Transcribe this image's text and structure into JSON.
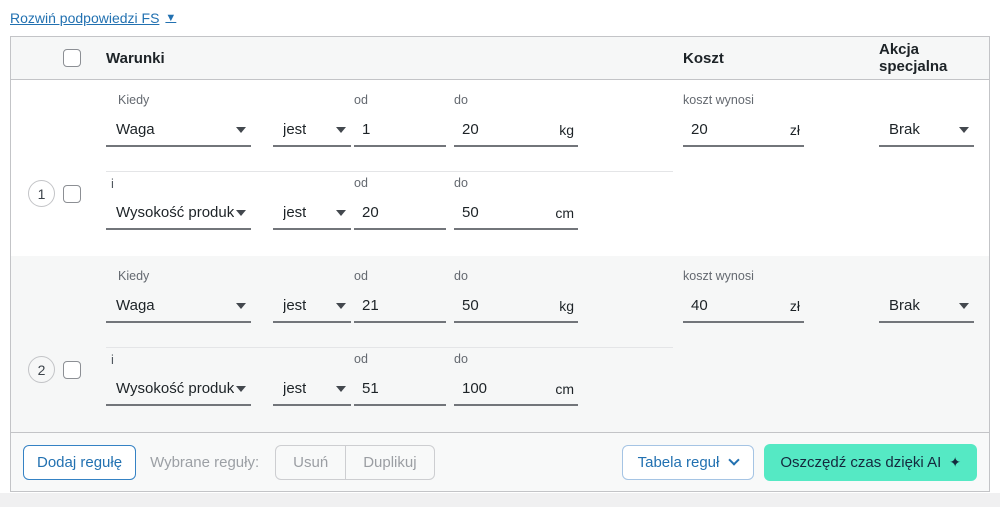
{
  "link": {
    "label": "Rozwiń podpowiedzi FS",
    "icon": "▼"
  },
  "table": {
    "header": {
      "conditions": "Warunki",
      "cost": "Koszt",
      "action": "Akcja specjalna"
    },
    "rules": [
      {
        "number": "1",
        "cond1": {
          "label": "Kiedy",
          "param": "Waga",
          "op": "jest",
          "od_label": "od",
          "od": "1",
          "do_label": "do",
          "do": "20",
          "unit": "kg"
        },
        "join": "i",
        "cond2": {
          "param": "Wysokość produk",
          "op": "jest",
          "od_label": "od",
          "od": "20",
          "do_label": "do",
          "do": "50",
          "unit": "cm"
        },
        "cost_label": "koszt wynosi",
        "cost": "20",
        "currency": "zł",
        "action": "Brak"
      },
      {
        "number": "2",
        "cond1": {
          "label": "Kiedy",
          "param": "Waga",
          "op": "jest",
          "od_label": "od",
          "od": "21",
          "do_label": "do",
          "do": "50",
          "unit": "kg"
        },
        "join": "i",
        "cond2": {
          "param": "Wysokość produk",
          "op": "jest",
          "od_label": "od",
          "od": "51",
          "do_label": "do",
          "do": "100",
          "unit": "cm"
        },
        "cost_label": "koszt wynosi",
        "cost": "40",
        "currency": "zł",
        "action": "Brak"
      }
    ]
  },
  "footer": {
    "add_rule": "Dodaj regułę",
    "selected_label": "Wybrane reguły:",
    "delete": "Usuń",
    "duplicate": "Duplikuj",
    "rules_table": "Tabela reguł",
    "ai_label": "Oszczędź czas dzięki AI",
    "ai_icon": "✦"
  },
  "colors": {
    "accent_blue": "#2271b1",
    "ai_green": "#55e9c4"
  }
}
